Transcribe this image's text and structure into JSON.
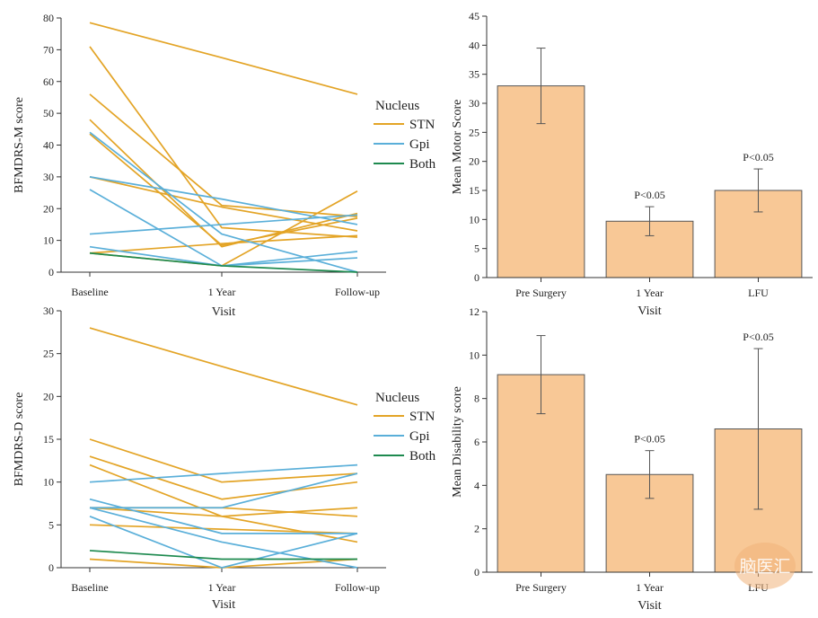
{
  "colors": {
    "STN": "#e3a426",
    "Gpi": "#5aafd9",
    "Both": "#1e8a4f",
    "bar_fill": "#f8c896",
    "bar_stroke": "#555555"
  },
  "watermark": "脑医汇",
  "chart_data": [
    {
      "id": "motor_lines",
      "type": "line",
      "xlabel": "Visit",
      "ylabel": "BFMDRS-M score",
      "categories": [
        "Baseline",
        "1 Year",
        "Follow-up"
      ],
      "ylim": [
        0,
        80
      ],
      "yticks": [
        0,
        10,
        20,
        30,
        40,
        50,
        60,
        70,
        80
      ],
      "legend": {
        "title": "Nucleus",
        "entries": [
          "STN",
          "Gpi",
          "Both"
        ],
        "position": "right"
      },
      "series": [
        {
          "group": "STN",
          "values": [
            78.5,
            67.5,
            56
          ]
        },
        {
          "group": "STN",
          "values": [
            71,
            14,
            11
          ]
        },
        {
          "group": "STN",
          "values": [
            56,
            21,
            17.5
          ]
        },
        {
          "group": "STN",
          "values": [
            48,
            8,
            18.5
          ]
        },
        {
          "group": "STN",
          "values": [
            43.5,
            8.5,
            17
          ]
        },
        {
          "group": "STN",
          "values": [
            30,
            20.5,
            13
          ]
        },
        {
          "group": "STN",
          "values": [
            6,
            2,
            25.5
          ]
        },
        {
          "group": "STN",
          "values": [
            6,
            9,
            11.5
          ]
        },
        {
          "group": "Gpi",
          "values": [
            44,
            12,
            0
          ]
        },
        {
          "group": "Gpi",
          "values": [
            30,
            23,
            15
          ]
        },
        {
          "group": "Gpi",
          "values": [
            26,
            2,
            4.5
          ]
        },
        {
          "group": "Gpi",
          "values": [
            12,
            15,
            18
          ]
        },
        {
          "group": "Gpi",
          "values": [
            8,
            2,
            6.5
          ]
        },
        {
          "group": "Both",
          "values": [
            6,
            2,
            0
          ]
        }
      ]
    },
    {
      "id": "motor_bars",
      "type": "bar",
      "xlabel": "Visit",
      "ylabel": "Mean Motor Score",
      "categories": [
        "Pre Surgery",
        "1 Year",
        "LFU"
      ],
      "values": [
        33,
        9.7,
        15
      ],
      "errors": [
        6.5,
        2.5,
        3.7
      ],
      "annotations": [
        "",
        "P<0.05",
        "P<0.05"
      ],
      "ylim": [
        0,
        45
      ],
      "yticks": [
        0,
        5,
        10,
        15,
        20,
        25,
        30,
        35,
        40,
        45
      ]
    },
    {
      "id": "disability_lines",
      "type": "line",
      "xlabel": "Visit",
      "ylabel": "BFMDRS-D score",
      "categories": [
        "Baseline",
        "1 Year",
        "Follow-up"
      ],
      "ylim": [
        0,
        30
      ],
      "yticks": [
        0,
        5,
        10,
        15,
        20,
        25,
        30
      ],
      "legend": {
        "title": "Nucleus",
        "entries": [
          "STN",
          "Gpi",
          "Both"
        ],
        "position": "right"
      },
      "series": [
        {
          "group": "STN",
          "values": [
            28,
            23.5,
            19
          ]
        },
        {
          "group": "STN",
          "values": [
            15,
            10,
            11
          ]
        },
        {
          "group": "STN",
          "values": [
            13,
            8,
            10
          ]
        },
        {
          "group": "STN",
          "values": [
            12,
            6,
            3
          ]
        },
        {
          "group": "STN",
          "values": [
            7,
            7,
            6
          ]
        },
        {
          "group": "STN",
          "values": [
            7,
            6,
            7
          ]
        },
        {
          "group": "STN",
          "values": [
            5,
            4.5,
            4
          ]
        },
        {
          "group": "STN",
          "values": [
            1,
            0,
            1
          ]
        },
        {
          "group": "Gpi",
          "values": [
            10,
            11,
            12
          ]
        },
        {
          "group": "Gpi",
          "values": [
            8,
            4,
            4
          ]
        },
        {
          "group": "Gpi",
          "values": [
            7,
            7,
            11
          ]
        },
        {
          "group": "Gpi",
          "values": [
            7,
            3,
            0
          ]
        },
        {
          "group": "Gpi",
          "values": [
            6,
            0,
            4
          ]
        },
        {
          "group": "Both",
          "values": [
            2,
            1,
            1
          ]
        }
      ]
    },
    {
      "id": "disability_bars",
      "type": "bar",
      "xlabel": "Visit",
      "ylabel": "Mean Disability score",
      "categories": [
        "Pre Surgery",
        "1 Year",
        "LFU"
      ],
      "values": [
        9.1,
        4.5,
        6.6
      ],
      "errors": [
        1.8,
        1.1,
        3.7
      ],
      "annotations": [
        "",
        "P<0.05",
        "P<0.05"
      ],
      "ylim": [
        0,
        12
      ],
      "yticks": [
        0,
        2,
        4,
        6,
        8,
        10,
        12
      ]
    }
  ]
}
